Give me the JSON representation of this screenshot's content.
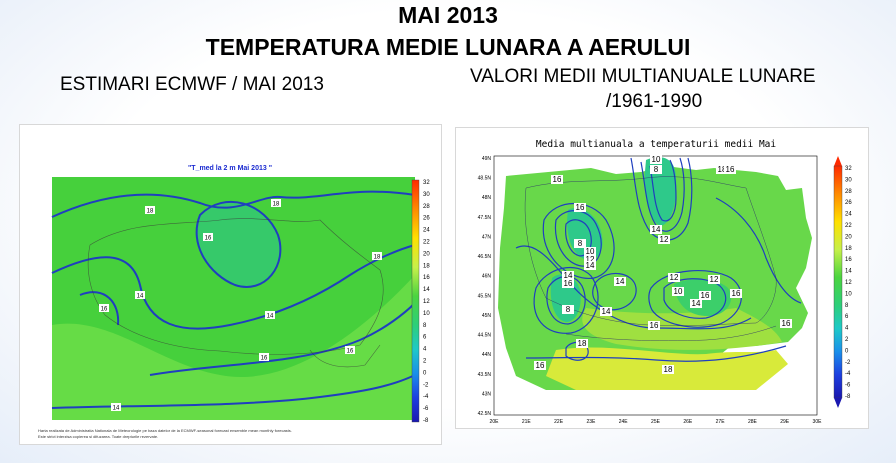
{
  "header": {
    "title_line1": "MAI 2013",
    "title_line2": "TEMPERATURA MEDIE LUNARA A AERULUI",
    "left_subtitle": "ESTIMARI ECMWF / MAI 2013",
    "right_subtitle_line1": "VALORI MEDII MULTIANUALE LUNARE",
    "right_subtitle_line2": "/1961-1990"
  },
  "left_map": {
    "title": "\"T_med la 2 m Mai 2013 \"",
    "colorbar_ticks": [
      "32",
      "30",
      "28",
      "26",
      "24",
      "22",
      "20",
      "18",
      "16",
      "14",
      "12",
      "10",
      "8",
      "6",
      "4",
      "2",
      "0",
      "-2",
      "-4",
      "-6",
      "-8"
    ],
    "contour_labels": [
      "18",
      "18",
      "16",
      "14",
      "18",
      "16",
      "16",
      "14",
      "16",
      "14"
    ],
    "footnote_line1": "Harta realizata de Administratia Nationala de Meteorologie pe baza datelor de la ECMWF-seasonal forecast ensemble mean monthly forecasts.",
    "footnote_line2": "Este strict interzisa copierea si difuzarea. Toate drepturile rezervate."
  },
  "right_map": {
    "title": "Media multianuala a temperaturii medii Mai",
    "y_ticks": [
      "49N",
      "48.5N",
      "48N",
      "47.5N",
      "47N",
      "46.5N",
      "46N",
      "45.5N",
      "45N",
      "44.5N",
      "44N",
      "43.5N",
      "43N",
      "42.5N"
    ],
    "x_ticks": [
      "20E",
      "21E",
      "22E",
      "23E",
      "24E",
      "25E",
      "26E",
      "27E",
      "28E",
      "29E",
      "30E"
    ],
    "colorbar_ticks": [
      "32",
      "30",
      "28",
      "26",
      "24",
      "22",
      "20",
      "18",
      "16",
      "14",
      "12",
      "10",
      "8",
      "6",
      "4",
      "2",
      "0",
      "-2",
      "-4",
      "-6",
      "-8"
    ],
    "contour_labels": [
      "16",
      "10",
      "8",
      "18",
      "16",
      "16",
      "8",
      "10",
      "12",
      "14",
      "14",
      "12",
      "12",
      "14",
      "16",
      "14",
      "12",
      "10",
      "14",
      "16",
      "16",
      "8",
      "14",
      "18",
      "16",
      "16",
      "18",
      "16"
    ]
  },
  "colors": {
    "map_green": "#43d13a",
    "map_light_green": "#6fe04a",
    "map_cyan_green": "#2ed28a",
    "contour": "#1f3fbf"
  }
}
